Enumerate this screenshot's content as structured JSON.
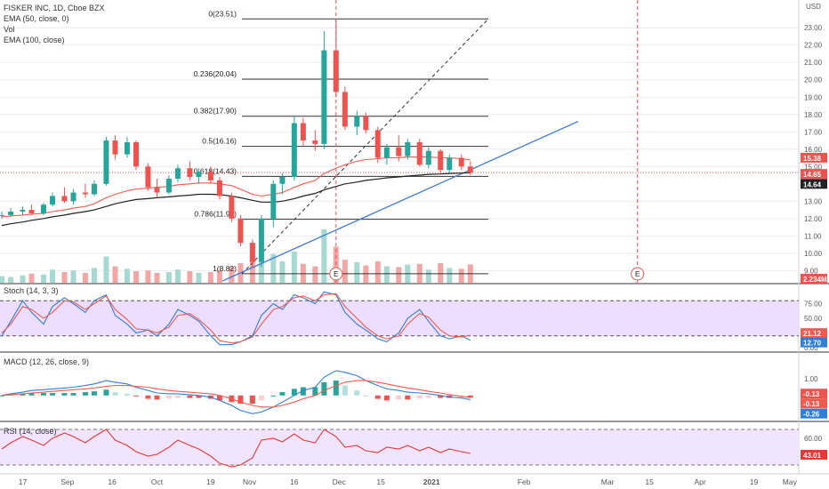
{
  "colors": {
    "up": "#26a69a",
    "down": "#ef5350",
    "vol_up": "#a7d9d3",
    "vol_down": "#f4a6a4",
    "ema50": "#f05a4f",
    "ema100": "#222222",
    "trend": "#3c78d8",
    "stoch_k": "#2f7fd8",
    "stoch_d": "#f05a4f",
    "stoch_band": "#e8d4ff",
    "rsi": "#e53935",
    "rsi_band": "#f0e4ff",
    "grid": "#ececec"
  },
  "legend": {
    "title": "FISKER INC, 1D, Cboe BZX",
    "ema50": "EMA (50, close, 0)",
    "vol": "Vol",
    "ema100": "EMA (100, close)",
    "stoch": "Stoch (14, 3, 3)",
    "macd": "MACD (12, 26, close, 9)",
    "rsi": "RSI (14, close)"
  },
  "price_axis": {
    "currency": "USD",
    "ticks": [
      "23.00",
      "22.00",
      "21.00",
      "20.00",
      "19.00",
      "18.00",
      "17.00",
      "16.00",
      "15.00",
      "13.00",
      "12.00",
      "11.00",
      "10.00",
      "9.00"
    ],
    "badges": [
      {
        "label": "15.38",
        "color": "#ef5350"
      },
      {
        "label": "14.65",
        "color": "#ef5350"
      },
      {
        "label": "14.64",
        "color": "#222222"
      },
      {
        "label": "2.234M",
        "color": "#ef5350"
      }
    ]
  },
  "fib_levels": [
    {
      "label": "0(23.51)",
      "price": 23.51
    },
    {
      "label": "0.236(20.04)",
      "price": 20.04
    },
    {
      "label": "0.382(17.90)",
      "price": 17.9
    },
    {
      "label": "0.5(16.16)",
      "price": 16.16
    },
    {
      "label": "0.618(14.43)",
      "price": 14.43
    },
    {
      "label": "0.786(11.96)",
      "price": 11.96
    },
    {
      "label": "1(8.82)",
      "price": 8.82
    }
  ],
  "earnings_marker": "E",
  "stoch_axis": {
    "ticks": [
      "75.00",
      "50.00",
      "25.00",
      "0.00"
    ],
    "badges": [
      {
        "label": "21.12",
        "color": "#f05a4f"
      },
      {
        "label": "12.70",
        "color": "#2f7fd8"
      }
    ]
  },
  "macd_axis": {
    "ticks": [
      "1.00",
      "0.00"
    ],
    "badges": [
      {
        "label": "-0.13",
        "color": "#ef5350"
      },
      {
        "label": "-0.13",
        "color": "#f05a4f"
      },
      {
        "label": "-0.26",
        "color": "#2f7fd8"
      }
    ]
  },
  "rsi_axis": {
    "ticks": [
      "60.00",
      "40.00"
    ],
    "badges": [
      {
        "label": "43.01",
        "color": "#e53935"
      }
    ]
  },
  "time_axis": [
    "17",
    "Sep",
    "16",
    "Oct",
    "19",
    "Nov",
    "16",
    "Dec",
    "15",
    "2021",
    "Feb",
    "Mar",
    "15",
    "Apr",
    "19",
    "May"
  ],
  "chart_data": [
    {
      "type": "candlestick",
      "title": "FISKER INC, 1D, Cboe BZX",
      "ylabel": "USD",
      "ylim": [
        8.3,
        24.6
      ],
      "x_range": [
        "2020-08-10",
        "2021-05-10"
      ],
      "ohlc": [
        [
          "2020-08-10",
          12.2,
          12.4,
          12.0,
          12.2
        ],
        [
          "2020-08-13",
          12.2,
          12.6,
          12.1,
          12.4
        ],
        [
          "2020-08-17",
          12.4,
          12.7,
          12.2,
          12.5
        ],
        [
          "2020-08-20",
          12.5,
          12.8,
          12.2,
          12.3
        ],
        [
          "2020-08-24",
          12.3,
          12.9,
          12.2,
          12.8
        ],
        [
          "2020-08-27",
          12.8,
          13.5,
          12.7,
          13.3
        ],
        [
          "2020-08-31",
          13.3,
          13.8,
          12.9,
          13.0
        ],
        [
          "2020-09-03",
          13.0,
          13.7,
          12.8,
          13.5
        ],
        [
          "2020-09-07",
          13.5,
          14.0,
          13.2,
          13.4
        ],
        [
          "2020-09-10",
          13.4,
          14.2,
          13.3,
          14.0
        ],
        [
          "2020-09-14",
          14.0,
          16.7,
          13.9,
          16.5
        ],
        [
          "2020-09-17",
          16.5,
          16.8,
          15.4,
          15.7
        ],
        [
          "2020-09-21",
          15.7,
          16.7,
          15.5,
          16.4
        ],
        [
          "2020-09-24",
          16.4,
          16.5,
          14.8,
          15.0
        ],
        [
          "2020-09-28",
          15.0,
          15.2,
          13.6,
          13.8
        ],
        [
          "2020-10-01",
          13.8,
          14.3,
          13.2,
          13.5
        ],
        [
          "2020-10-05",
          13.5,
          14.5,
          13.4,
          14.3
        ],
        [
          "2020-10-08",
          14.3,
          15.1,
          14.1,
          14.9
        ],
        [
          "2020-10-12",
          14.9,
          15.3,
          14.2,
          14.4
        ],
        [
          "2020-10-15",
          14.4,
          14.9,
          14.0,
          14.7
        ],
        [
          "2020-10-19",
          14.7,
          15.0,
          14.0,
          14.2
        ],
        [
          "2020-10-22",
          14.2,
          14.4,
          13.1,
          13.3
        ],
        [
          "2020-10-26",
          13.3,
          13.5,
          11.8,
          12.0
        ],
        [
          "2020-10-29",
          12.0,
          12.2,
          10.4,
          10.6
        ],
        [
          "2020-11-02",
          10.6,
          10.8,
          9.2,
          9.5
        ],
        [
          "2020-11-05",
          9.5,
          12.2,
          9.2,
          12.0
        ],
        [
          "2020-11-09",
          12.0,
          14.2,
          11.5,
          14.0
        ],
        [
          "2020-11-12",
          14.0,
          14.6,
          13.4,
          14.4
        ],
        [
          "2020-11-16",
          14.4,
          17.9,
          14.2,
          17.5
        ],
        [
          "2020-11-19",
          17.5,
          17.8,
          16.2,
          16.5
        ],
        [
          "2020-11-23",
          16.5,
          17.1,
          15.9,
          16.3
        ],
        [
          "2020-11-26",
          16.3,
          22.8,
          16.0,
          21.7
        ],
        [
          "2020-11-30",
          21.7,
          23.5,
          19.0,
          19.3
        ],
        [
          "2020-12-03",
          19.3,
          19.6,
          17.1,
          17.3
        ],
        [
          "2020-12-07",
          17.3,
          18.2,
          16.8,
          17.9
        ],
        [
          "2020-12-10",
          17.9,
          18.1,
          16.9,
          17.1
        ],
        [
          "2020-12-14",
          17.1,
          17.3,
          15.2,
          15.5
        ],
        [
          "2020-12-17",
          15.5,
          16.3,
          15.1,
          16.1
        ],
        [
          "2020-12-21",
          16.1,
          16.8,
          15.3,
          15.6
        ],
        [
          "2020-12-24",
          15.6,
          16.6,
          15.4,
          16.4
        ],
        [
          "2020-12-28",
          16.4,
          16.6,
          15.0,
          15.1
        ],
        [
          "2020-12-31",
          15.1,
          16.1,
          14.9,
          15.9
        ],
        [
          "2021-01-04",
          15.9,
          16.0,
          14.6,
          14.8
        ],
        [
          "2021-01-07",
          14.8,
          15.7,
          14.6,
          15.5
        ],
        [
          "2021-01-11",
          15.5,
          15.7,
          14.8,
          15.0
        ],
        [
          "2021-01-14",
          15.0,
          15.3,
          14.5,
          14.65
        ]
      ],
      "volume": [
        0.8,
        0.7,
        0.9,
        1.1,
        1.0,
        1.6,
        1.3,
        1.5,
        1.2,
        1.8,
        3.2,
        2.0,
        1.7,
        1.4,
        1.5,
        1.2,
        1.3,
        1.6,
        1.4,
        1.2,
        1.3,
        1.5,
        1.9,
        2.4,
        2.8,
        4.2,
        3.5,
        2.6,
        3.8,
        2.3,
        2.0,
        6.5,
        4.4,
        2.8,
        2.5,
        2.1,
        2.6,
        2.0,
        1.9,
        2.2,
        2.3,
        1.6,
        2.4,
        1.8,
        1.7,
        2.234
      ],
      "ema50": [
        12.1,
        12.15,
        12.2,
        12.25,
        12.3,
        12.4,
        12.5,
        12.6,
        12.7,
        12.85,
        13.2,
        13.4,
        13.6,
        13.7,
        13.75,
        13.8,
        13.85,
        13.95,
        14.0,
        14.05,
        14.05,
        14.0,
        13.9,
        13.7,
        13.4,
        13.3,
        13.4,
        13.5,
        13.8,
        14.0,
        14.2,
        14.6,
        14.9,
        15.1,
        15.3,
        15.4,
        15.45,
        15.5,
        15.5,
        15.55,
        15.55,
        15.55,
        15.5,
        15.5,
        15.45,
        15.38
      ],
      "ema100": [
        11.6,
        11.7,
        11.8,
        11.9,
        12.0,
        12.1,
        12.2,
        12.3,
        12.4,
        12.5,
        12.7,
        12.85,
        13.0,
        13.1,
        13.15,
        13.2,
        13.25,
        13.3,
        13.35,
        13.4,
        13.4,
        13.38,
        13.3,
        13.2,
        13.05,
        12.95,
        12.95,
        13.0,
        13.15,
        13.3,
        13.45,
        13.65,
        13.85,
        14.0,
        14.1,
        14.2,
        14.28,
        14.35,
        14.4,
        14.45,
        14.5,
        14.55,
        14.57,
        14.6,
        14.62,
        14.64
      ]
    },
    {
      "type": "line",
      "title": "Stoch (14, 3, 3)",
      "ylim": [
        0,
        100
      ],
      "series": [
        {
          "name": "%K",
          "values": [
            20,
            45,
            80,
            60,
            40,
            70,
            85,
            75,
            60,
            80,
            90,
            55,
            40,
            25,
            30,
            20,
            40,
            65,
            55,
            45,
            20,
            5,
            5,
            10,
            20,
            55,
            75,
            65,
            90,
            85,
            75,
            95,
            90,
            60,
            40,
            30,
            15,
            10,
            25,
            50,
            65,
            45,
            20,
            15,
            20,
            12.7
          ]
        },
        {
          "name": "%D",
          "values": [
            25,
            40,
            70,
            65,
            50,
            60,
            80,
            78,
            65,
            75,
            88,
            65,
            48,
            32,
            30,
            25,
            35,
            55,
            58,
            48,
            30,
            12,
            8,
            10,
            18,
            40,
            65,
            70,
            85,
            88,
            80,
            90,
            92,
            70,
            50,
            35,
            20,
            15,
            20,
            40,
            58,
            52,
            30,
            20,
            18,
            21.12
          ]
        }
      ]
    },
    {
      "type": "line",
      "title": "MACD (12, 26, close, 9)",
      "ylim": [
        -1.3,
        2.3
      ],
      "series": [
        {
          "name": "MACD",
          "values": [
            0.0,
            0.1,
            0.2,
            0.3,
            0.35,
            0.4,
            0.45,
            0.5,
            0.6,
            0.7,
            0.9,
            0.8,
            0.7,
            0.5,
            0.3,
            0.15,
            0.1,
            0.1,
            0.05,
            0.0,
            -0.1,
            -0.3,
            -0.6,
            -0.9,
            -1.1,
            -1.0,
            -0.7,
            -0.4,
            0.0,
            0.3,
            0.5,
            1.1,
            1.5,
            1.4,
            1.2,
            0.9,
            0.6,
            0.4,
            0.3,
            0.2,
            0.15,
            0.1,
            0.0,
            -0.1,
            -0.15,
            -0.26
          ]
        },
        {
          "name": "Signal",
          "values": [
            0.0,
            0.05,
            0.1,
            0.15,
            0.2,
            0.25,
            0.3,
            0.35,
            0.4,
            0.45,
            0.55,
            0.6,
            0.6,
            0.55,
            0.5,
            0.4,
            0.3,
            0.25,
            0.2,
            0.15,
            0.1,
            0.0,
            -0.2,
            -0.4,
            -0.6,
            -0.7,
            -0.7,
            -0.6,
            -0.4,
            -0.2,
            0.0,
            0.3,
            0.6,
            0.8,
            0.9,
            0.9,
            0.8,
            0.7,
            0.55,
            0.45,
            0.35,
            0.25,
            0.15,
            0.05,
            -0.05,
            -0.13
          ]
        },
        {
          "name": "Histogram",
          "values": [
            0.0,
            0.05,
            0.1,
            0.15,
            0.15,
            0.15,
            0.15,
            0.15,
            0.2,
            0.25,
            0.35,
            0.2,
            0.1,
            -0.05,
            -0.2,
            -0.25,
            -0.2,
            -0.15,
            -0.15,
            -0.15,
            -0.2,
            -0.3,
            -0.4,
            -0.5,
            -0.5,
            -0.3,
            0.0,
            0.2,
            0.4,
            0.5,
            0.5,
            0.8,
            0.9,
            0.6,
            0.3,
            0.0,
            -0.2,
            -0.3,
            -0.25,
            -0.25,
            -0.2,
            -0.15,
            -0.15,
            -0.15,
            -0.1,
            -0.13
          ]
        }
      ]
    },
    {
      "type": "line",
      "title": "RSI (14, close)",
      "ylim": [
        25,
        75
      ],
      "series": [
        {
          "name": "RSI",
          "values": [
            48,
            55,
            62,
            58,
            52,
            60,
            66,
            62,
            55,
            62,
            70,
            58,
            52,
            45,
            40,
            42,
            50,
            58,
            52,
            48,
            40,
            32,
            28,
            30,
            38,
            58,
            60,
            56,
            65,
            58,
            55,
            70,
            62,
            50,
            52,
            46,
            44,
            50,
            48,
            52,
            46,
            50,
            44,
            48,
            45,
            43.01
          ]
        }
      ]
    }
  ]
}
